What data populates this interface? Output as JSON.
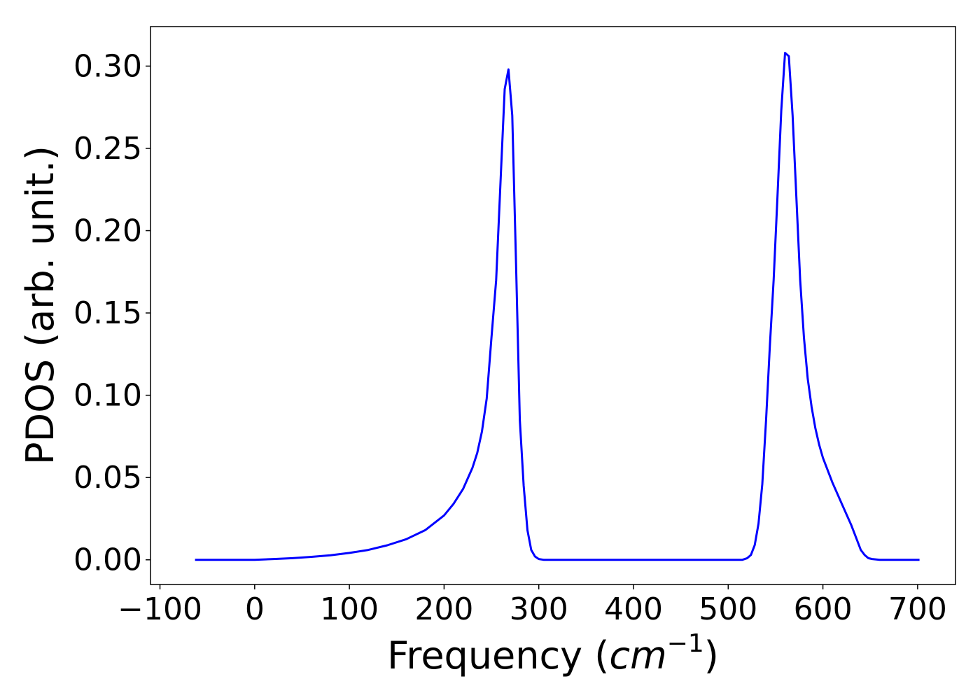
{
  "chart_data": {
    "type": "line",
    "xlabel": "Frequency (",
    "xlabel_math": "cm",
    "xlabel_exp": "−1",
    "xlabel_close": ")",
    "ylabel": "PDOS (arb. unit.)",
    "xlim": [
      -110,
      740
    ],
    "ylim": [
      -0.015,
      0.324
    ],
    "xticks": [
      -100,
      0,
      100,
      200,
      300,
      400,
      500,
      600,
      700
    ],
    "xtick_labels": [
      "−100",
      "0",
      "100",
      "200",
      "300",
      "400",
      "500",
      "600",
      "700"
    ],
    "yticks": [
      0.0,
      0.05,
      0.1,
      0.15,
      0.2,
      0.25,
      0.3
    ],
    "ytick_labels": [
      "0.00",
      "0.05",
      "0.10",
      "0.15",
      "0.20",
      "0.25",
      "0.30"
    ],
    "grid": false,
    "series": [
      {
        "color": "#0000ff",
        "x": [
          -63,
          -20,
          0,
          20,
          40,
          60,
          80,
          100,
          120,
          140,
          160,
          180,
          200,
          210,
          220,
          230,
          235,
          240,
          245,
          250,
          255,
          260,
          264,
          268,
          272,
          276,
          280,
          284,
          288,
          292,
          296,
          300,
          305,
          310,
          350,
          400,
          450,
          500,
          515,
          520,
          524,
          528,
          532,
          536,
          540,
          544,
          548,
          552,
          556,
          560,
          564,
          568,
          572,
          576,
          580,
          584,
          588,
          592,
          596,
          600,
          610,
          620,
          630,
          636,
          640,
          644,
          648,
          652,
          660,
          680,
          702
        ],
        "y": [
          0,
          0,
          0,
          0.0005,
          0.001,
          0.0018,
          0.0028,
          0.0042,
          0.006,
          0.0088,
          0.0125,
          0.018,
          0.027,
          0.034,
          0.043,
          0.056,
          0.065,
          0.078,
          0.098,
          0.135,
          0.17,
          0.235,
          0.286,
          0.298,
          0.27,
          0.18,
          0.085,
          0.045,
          0.018,
          0.006,
          0.002,
          0.0005,
          0,
          0,
          0,
          0,
          0,
          0,
          0,
          0.001,
          0.003,
          0.009,
          0.022,
          0.046,
          0.085,
          0.13,
          0.17,
          0.22,
          0.273,
          0.308,
          0.306,
          0.27,
          0.22,
          0.17,
          0.135,
          0.11,
          0.093,
          0.08,
          0.07,
          0.062,
          0.047,
          0.034,
          0.021,
          0.012,
          0.006,
          0.003,
          0.001,
          0.0005,
          0,
          0,
          0
        ]
      }
    ]
  }
}
